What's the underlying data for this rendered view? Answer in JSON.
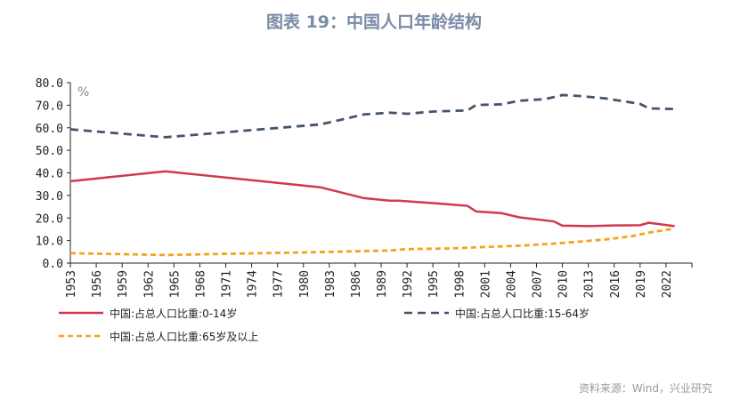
{
  "title": "图表 19：中国人口年龄结构",
  "source": "资料来源：Wind，兴业研究",
  "chart_data": {
    "type": "line",
    "ylabel": "%",
    "ylim": [
      0,
      80
    ],
    "yticks": [
      "0.0",
      "10.0",
      "20.0",
      "30.0",
      "40.0",
      "50.0",
      "60.0",
      "70.0",
      "80.0"
    ],
    "xlim": [
      1953,
      2025
    ],
    "xticks": [
      "1953",
      "1956",
      "1959",
      "1962",
      "1965",
      "1968",
      "1971",
      "1974",
      "1977",
      "1980",
      "1983",
      "1986",
      "1989",
      "1992",
      "1995",
      "1998",
      "2001",
      "2004",
      "2007",
      "2010",
      "2013",
      "2016",
      "2019",
      "2022"
    ],
    "legend_position": "bottom",
    "grid": false,
    "series": [
      {
        "name": "中国:占总人口比重:0-14岁",
        "color": "#d0394f",
        "style": "solid",
        "x": [
          1953,
          1964,
          1982,
          1987,
          1990,
          1991,
          1995,
          1999,
          2000,
          2002,
          2003,
          2005,
          2009,
          2010,
          2013,
          2016,
          2019,
          2020,
          2022,
          2023
        ],
        "y": [
          36.3,
          40.7,
          33.6,
          28.8,
          27.7,
          27.7,
          26.6,
          25.4,
          22.9,
          22.4,
          22.1,
          20.3,
          18.5,
          16.6,
          16.4,
          16.7,
          16.8,
          17.9,
          16.9,
          16.4
        ]
      },
      {
        "name": "中国:占总人口比重:15-64岁",
        "color": "#44546a",
        "style": "dashed",
        "x": [
          1953,
          1964,
          1982,
          1987,
          1990,
          1992,
          1995,
          1999,
          2000,
          2003,
          2005,
          2008,
          2010,
          2012,
          2015,
          2019,
          2020,
          2023
        ],
        "y": [
          59.3,
          55.8,
          61.5,
          65.9,
          66.7,
          66.2,
          67.2,
          67.7,
          70.1,
          70.4,
          72.0,
          72.7,
          74.5,
          74.1,
          73.0,
          70.6,
          68.6,
          68.3
        ]
      },
      {
        "name": "中国:占总人口比重:65岁及以上",
        "color": "#f5a31a",
        "style": "dashed",
        "x": [
          1953,
          1964,
          1982,
          1990,
          1992,
          1997,
          2000,
          2005,
          2010,
          2015,
          2018,
          2020,
          2023
        ],
        "y": [
          4.4,
          3.6,
          4.9,
          5.6,
          6.2,
          6.5,
          7.0,
          7.7,
          8.9,
          10.5,
          11.9,
          13.5,
          15.4
        ]
      }
    ]
  }
}
